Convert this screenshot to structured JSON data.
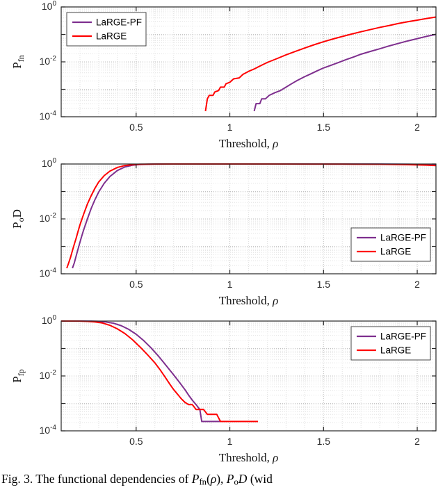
{
  "colors": {
    "purple": "#7E2F8E",
    "red": "#FF0000",
    "grid_minor": "#e2e2e2",
    "grid_major": "#c3c3c3",
    "axis": "#262626",
    "tick_text": "#262626"
  },
  "figure": {
    "caption_segments": [
      {
        "t": "Fig. 3.  The functional dependencies of "
      },
      {
        "t": "P",
        "italic": true
      },
      {
        "t": "fn",
        "sub": true
      },
      {
        "t": "("
      },
      {
        "t": "ρ",
        "italic": true
      },
      {
        "t": "), "
      },
      {
        "t": "P",
        "italic": true
      },
      {
        "t": "o",
        "sub": true
      },
      {
        "t": "D",
        "italic": true
      },
      {
        "t": " (wid"
      }
    ]
  },
  "chart_data": [
    {
      "type": "line",
      "title": "",
      "ylabel": "P_fn",
      "ylabel_segments": [
        {
          "t": "P"
        },
        {
          "t": "fn",
          "sub": true
        }
      ],
      "xlabel": "Threshold, ρ",
      "xlabel_segments": [
        {
          "t": "Threshold, "
        },
        {
          "t": "ρ",
          "italic": true
        }
      ],
      "xlim": [
        0.1,
        2.1
      ],
      "ylog_exp_range": [
        -4,
        0
      ],
      "xticks": [
        0.5,
        1,
        1.5,
        2
      ],
      "yticks_exp": [
        0,
        -2,
        -4
      ],
      "grid": true,
      "legend": {
        "position": "northwest",
        "entries": [
          {
            "label": "LaRGE-PF",
            "color": "purple"
          },
          {
            "label": "LaRGE",
            "color": "red"
          }
        ]
      },
      "series": [
        {
          "name": "LaRGE-PF",
          "color": "purple",
          "points": [
            [
              1.13,
              0.00016
            ],
            [
              1.14,
              0.0003
            ],
            [
              1.16,
              0.0003
            ],
            [
              1.17,
              0.00045
            ],
            [
              1.19,
              0.00045
            ],
            [
              1.21,
              0.0006
            ],
            [
              1.24,
              0.00075
            ],
            [
              1.27,
              0.0009
            ],
            [
              1.3,
              0.0012
            ],
            [
              1.33,
              0.0016
            ],
            [
              1.36,
              0.0021
            ],
            [
              1.4,
              0.0029
            ],
            [
              1.43,
              0.0036
            ],
            [
              1.46,
              0.0045
            ],
            [
              1.5,
              0.006
            ],
            [
              1.54,
              0.0075
            ],
            [
              1.58,
              0.0095
            ],
            [
              1.62,
              0.012
            ],
            [
              1.66,
              0.015
            ],
            [
              1.7,
              0.019
            ],
            [
              1.75,
              0.024
            ],
            [
              1.8,
              0.03
            ],
            [
              1.85,
              0.038
            ],
            [
              1.9,
              0.047
            ],
            [
              1.95,
              0.058
            ],
            [
              2.0,
              0.07
            ],
            [
              2.05,
              0.085
            ],
            [
              2.1,
              0.1
            ]
          ]
        },
        {
          "name": "LaRGE",
          "color": "red",
          "points": [
            [
              0.87,
              0.00016
            ],
            [
              0.88,
              0.00045
            ],
            [
              0.89,
              0.0006
            ],
            [
              0.91,
              0.0006
            ],
            [
              0.92,
              0.0008
            ],
            [
              0.94,
              0.0009
            ],
            [
              0.95,
              0.0012
            ],
            [
              0.97,
              0.0012
            ],
            [
              0.98,
              0.0016
            ],
            [
              1.0,
              0.0018
            ],
            [
              1.02,
              0.0024
            ],
            [
              1.05,
              0.0026
            ],
            [
              1.07,
              0.0035
            ],
            [
              1.1,
              0.0045
            ],
            [
              1.13,
              0.0055
            ],
            [
              1.16,
              0.007
            ],
            [
              1.2,
              0.0095
            ],
            [
              1.25,
              0.013
            ],
            [
              1.3,
              0.018
            ],
            [
              1.35,
              0.024
            ],
            [
              1.4,
              0.032
            ],
            [
              1.45,
              0.042
            ],
            [
              1.5,
              0.054
            ],
            [
              1.55,
              0.068
            ],
            [
              1.6,
              0.084
            ],
            [
              1.65,
              0.103
            ],
            [
              1.7,
              0.125
            ],
            [
              1.75,
              0.15
            ],
            [
              1.8,
              0.18
            ],
            [
              1.85,
              0.21
            ],
            [
              1.9,
              0.25
            ],
            [
              1.95,
              0.29
            ],
            [
              2.0,
              0.33
            ],
            [
              2.05,
              0.38
            ],
            [
              2.1,
              0.43
            ]
          ]
        }
      ]
    },
    {
      "type": "line",
      "title": "",
      "ylabel": "P_oD",
      "ylabel_segments": [
        {
          "t": "P"
        },
        {
          "t": "o",
          "sub": true
        },
        {
          "t": "D"
        }
      ],
      "xlabel": "Threshold, ρ",
      "xlabel_segments": [
        {
          "t": "Threshold, "
        },
        {
          "t": "ρ",
          "italic": true
        }
      ],
      "xlim": [
        0.1,
        2.1
      ],
      "ylog_exp_range": [
        -4,
        0
      ],
      "xticks": [
        0.5,
        1,
        1.5,
        2
      ],
      "yticks_exp": [
        0,
        -2,
        -4
      ],
      "grid": true,
      "legend": {
        "position": "east",
        "entries": [
          {
            "label": "LaRGE-PF",
            "color": "purple"
          },
          {
            "label": "LaRGE",
            "color": "red"
          }
        ]
      },
      "series": [
        {
          "name": "LaRGE-PF",
          "color": "purple",
          "points": [
            [
              0.16,
              0.00016
            ],
            [
              0.17,
              0.00025
            ],
            [
              0.18,
              0.00045
            ],
            [
              0.19,
              0.0008
            ],
            [
              0.2,
              0.0014
            ],
            [
              0.21,
              0.0024
            ],
            [
              0.22,
              0.004
            ],
            [
              0.24,
              0.01
            ],
            [
              0.26,
              0.024
            ],
            [
              0.28,
              0.05
            ],
            [
              0.3,
              0.095
            ],
            [
              0.33,
              0.2
            ],
            [
              0.36,
              0.35
            ],
            [
              0.4,
              0.58
            ],
            [
              0.44,
              0.78
            ],
            [
              0.48,
              0.9
            ],
            [
              0.52,
              0.955
            ],
            [
              0.56,
              0.98
            ],
            [
              0.6,
              0.99
            ],
            [
              0.7,
              0.997
            ],
            [
              0.8,
              0.999
            ],
            [
              1.0,
              0.999
            ],
            [
              1.3,
              0.998
            ],
            [
              1.6,
              0.995
            ],
            [
              1.8,
              0.99
            ],
            [
              1.95,
              0.975
            ],
            [
              2.05,
              0.955
            ],
            [
              2.1,
              0.94
            ]
          ]
        },
        {
          "name": "LaRGE",
          "color": "red",
          "points": [
            [
              0.13,
              0.00016
            ],
            [
              0.14,
              0.00025
            ],
            [
              0.15,
              0.0004
            ],
            [
              0.16,
              0.0007
            ],
            [
              0.17,
              0.0012
            ],
            [
              0.18,
              0.002
            ],
            [
              0.19,
              0.0035
            ],
            [
              0.2,
              0.006
            ],
            [
              0.22,
              0.015
            ],
            [
              0.24,
              0.035
            ],
            [
              0.26,
              0.07
            ],
            [
              0.28,
              0.13
            ],
            [
              0.3,
              0.22
            ],
            [
              0.33,
              0.38
            ],
            [
              0.36,
              0.55
            ],
            [
              0.4,
              0.75
            ],
            [
              0.44,
              0.88
            ],
            [
              0.48,
              0.945
            ],
            [
              0.52,
              0.975
            ],
            [
              0.56,
              0.988
            ],
            [
              0.6,
              0.994
            ],
            [
              0.7,
              0.998
            ],
            [
              0.8,
              0.999
            ],
            [
              1.0,
              0.999
            ],
            [
              1.2,
              0.998
            ],
            [
              1.4,
              0.996
            ],
            [
              1.6,
              0.99
            ],
            [
              1.8,
              0.975
            ],
            [
              1.95,
              0.945
            ],
            [
              2.05,
              0.91
            ],
            [
              2.1,
              0.88
            ]
          ]
        }
      ]
    },
    {
      "type": "line",
      "title": "",
      "ylabel": "P_fp",
      "ylabel_segments": [
        {
          "t": "P"
        },
        {
          "t": "fp",
          "sub": true
        }
      ],
      "xlabel": "Threshold, ρ",
      "xlabel_segments": [
        {
          "t": "Threshold, "
        },
        {
          "t": "ρ",
          "italic": true
        }
      ],
      "xlim": [
        0.1,
        2.1
      ],
      "ylog_exp_range": [
        -4,
        0
      ],
      "xticks": [
        0.5,
        1,
        1.5,
        2
      ],
      "yticks_exp": [
        0,
        -2,
        -4
      ],
      "grid": true,
      "legend": {
        "position": "northeast",
        "entries": [
          {
            "label": "LaRGE-PF",
            "color": "purple"
          },
          {
            "label": "LaRGE",
            "color": "red"
          }
        ]
      },
      "series": [
        {
          "name": "LaRGE-PF",
          "color": "purple",
          "points": [
            [
              0.1,
              1.0
            ],
            [
              0.2,
              1.0
            ],
            [
              0.26,
              0.99
            ],
            [
              0.3,
              0.97
            ],
            [
              0.34,
              0.92
            ],
            [
              0.38,
              0.83
            ],
            [
              0.42,
              0.68
            ],
            [
              0.46,
              0.5
            ],
            [
              0.5,
              0.33
            ],
            [
              0.54,
              0.195
            ],
            [
              0.58,
              0.105
            ],
            [
              0.62,
              0.052
            ],
            [
              0.66,
              0.024
            ],
            [
              0.7,
              0.011
            ],
            [
              0.73,
              0.006
            ],
            [
              0.76,
              0.0032
            ],
            [
              0.78,
              0.002
            ],
            [
              0.8,
              0.0013
            ],
            [
              0.82,
              0.0009
            ],
            [
              0.84,
              0.0006
            ],
            [
              0.85,
              0.00022
            ],
            [
              0.97,
              0.00022
            ]
          ]
        },
        {
          "name": "LaRGE",
          "color": "red",
          "points": [
            [
              0.1,
              1.0
            ],
            [
              0.15,
              1.0
            ],
            [
              0.2,
              0.99
            ],
            [
              0.24,
              0.97
            ],
            [
              0.28,
              0.93
            ],
            [
              0.32,
              0.85
            ],
            [
              0.36,
              0.7
            ],
            [
              0.4,
              0.52
            ],
            [
              0.44,
              0.35
            ],
            [
              0.48,
              0.21
            ],
            [
              0.52,
              0.115
            ],
            [
              0.56,
              0.06
            ],
            [
              0.6,
              0.03
            ],
            [
              0.63,
              0.016
            ],
            [
              0.66,
              0.008
            ],
            [
              0.68,
              0.005
            ],
            [
              0.7,
              0.0032
            ],
            [
              0.72,
              0.0022
            ],
            [
              0.74,
              0.0015
            ],
            [
              0.76,
              0.0011
            ],
            [
              0.78,
              0.0009
            ],
            [
              0.8,
              0.0009
            ],
            [
              0.82,
              0.0006
            ],
            [
              0.86,
              0.0006
            ],
            [
              0.88,
              0.0004
            ],
            [
              0.93,
              0.0004
            ],
            [
              0.95,
              0.00022
            ],
            [
              1.15,
              0.00022
            ]
          ]
        }
      ]
    }
  ]
}
